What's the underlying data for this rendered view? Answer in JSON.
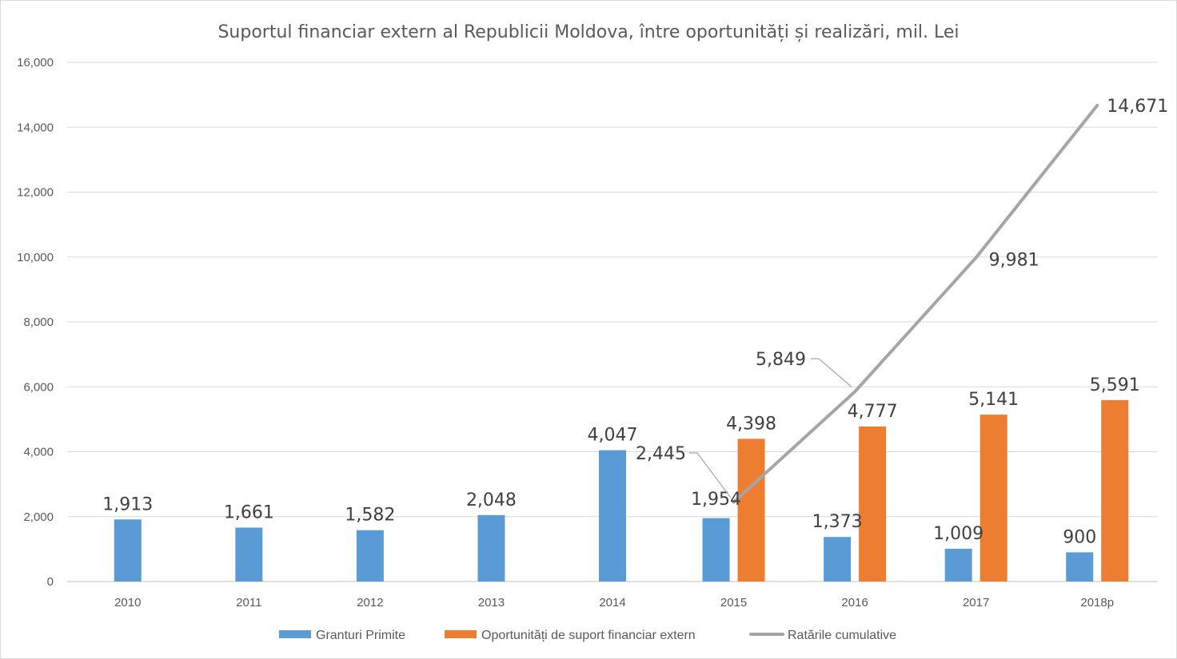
{
  "chart_data": {
    "type": "bar",
    "title": "Suportul financiar extern al Republicii Moldova, între oportunități și realizări, mil. Lei",
    "categories": [
      "2010",
      "2011",
      "2012",
      "2013",
      "2014",
      "2015",
      "2016",
      "2017",
      "2018p"
    ],
    "ylim": [
      0,
      16000
    ],
    "yticks": [
      0,
      2000,
      4000,
      6000,
      8000,
      10000,
      12000,
      14000,
      16000
    ],
    "ytick_labels": [
      "0",
      "2,000",
      "4,000",
      "6,000",
      "8,000",
      "10,000",
      "12,000",
      "14,000",
      "16,000"
    ],
    "grid": true,
    "legend_position": "bottom",
    "series": [
      {
        "name": "Granturi Primite",
        "type": "bar",
        "color": "#5b9bd5",
        "values": [
          1913,
          1661,
          1582,
          2048,
          4047,
          1954,
          1373,
          1009,
          900
        ],
        "labels": [
          "1,913",
          "1,661",
          "1,582",
          "2,048",
          "4,047",
          "1,954",
          "1,373",
          "1,009",
          "900"
        ]
      },
      {
        "name": "Oportunități de suport financiar extern",
        "type": "bar",
        "color": "#ed7d31",
        "values": [
          null,
          null,
          null,
          null,
          null,
          4398,
          4777,
          5141,
          5591
        ],
        "labels": [
          "",
          "",
          "",
          "",
          "",
          "4,398",
          "4,777",
          "5,141",
          "5,591"
        ]
      },
      {
        "name": "Ratările cumulative",
        "type": "line",
        "color": "#a5a5a5",
        "values": [
          null,
          null,
          null,
          null,
          null,
          2445,
          5849,
          9981,
          14671
        ],
        "labels": [
          "",
          "",
          "",
          "",
          "",
          "2,445",
          "5,849",
          "9,981",
          "14,671"
        ]
      }
    ]
  }
}
